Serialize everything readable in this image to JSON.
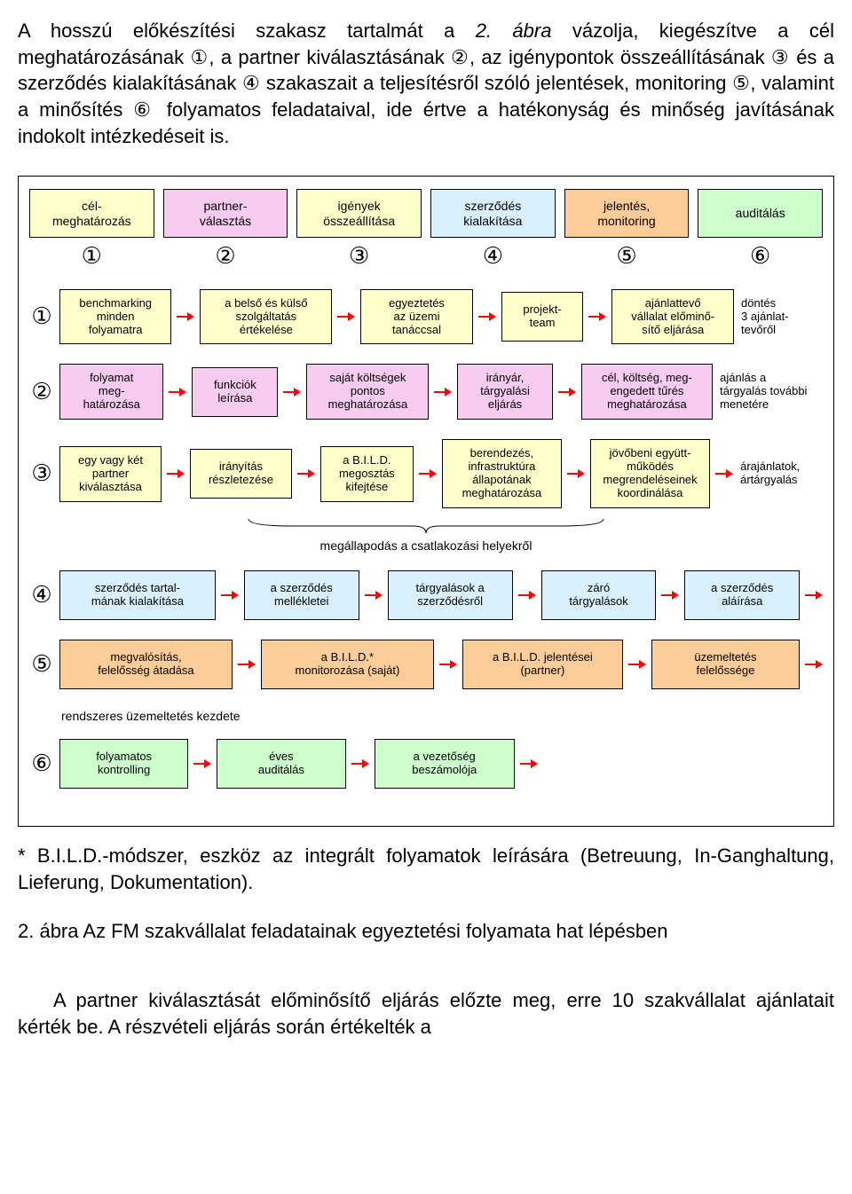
{
  "intro_para": "A hosszú előkészítési szakasz tartalmát a <span class=\"italic\">2. ábra</span> vázolja, kiegészítve a cél meghatározásának ①, a partner kiválasztásának ②, az igénypontok összeállításának ③ és a szerződés kialakításának ④ szakaszait a teljesítésről szóló jelentések, monitoring ⑤, valamint a minősítés ⑥ folyamatos feladataival, ide értve a hatékonyság és minőség javításának indokolt intézkedéseit is.",
  "colors": {
    "yellow": "#ffffcc",
    "pink": "#f8ccf0",
    "blue": "#cce8ff",
    "orange": "#fccc99",
    "lightblue": "#d9f0ff",
    "green": "#ccffcc",
    "none": "transparent",
    "arrow": "#ff0000"
  },
  "header": {
    "boxes": [
      {
        "label": "cél-\nmeghatározás",
        "color": "yellow"
      },
      {
        "label": "partner-\nválasztás",
        "color": "pink"
      },
      {
        "label": "igények\nösszeállítása",
        "color": "yellow"
      },
      {
        "label": "szerződés\nkialakítása",
        "color": "lightblue"
      },
      {
        "label": "jelentés,\nmonitoring",
        "color": "orange"
      },
      {
        "label": "auditálás",
        "color": "green"
      }
    ],
    "nums": [
      "①",
      "②",
      "③",
      "④",
      "⑤",
      "⑥"
    ]
  },
  "rows": [
    {
      "num": "①",
      "color": "yellow",
      "items": [
        {
          "t": "box",
          "label": "benchmarking\nminden\nfolyamatra",
          "flex": 1
        },
        {
          "t": "arr"
        },
        {
          "t": "box",
          "label": "a belső és külső\nszolgáltatás\nértékelése",
          "flex": 1.2
        },
        {
          "t": "arr"
        },
        {
          "t": "box",
          "label": "egyeztetés\naz üzemi\ntanáccsal",
          "flex": 1
        },
        {
          "t": "arr"
        },
        {
          "t": "box",
          "label": "projekt-\nteam",
          "flex": 0.7
        },
        {
          "t": "arr"
        },
        {
          "t": "box",
          "label": "ajánlattevő\nvállalat előminő-\nsítő eljárása",
          "flex": 1.1
        },
        {
          "t": "plain",
          "label": "döntés\n3 ajánlat-\ntevőről",
          "flex": 0.8
        }
      ]
    },
    {
      "num": "②",
      "color": "pink",
      "items": [
        {
          "t": "box",
          "label": "folyamat\nmeg-\nhatározása",
          "flex": 1
        },
        {
          "t": "arr"
        },
        {
          "t": "box",
          "label": "funkciók\nleírása",
          "flex": 0.8
        },
        {
          "t": "arr"
        },
        {
          "t": "box",
          "label": "saját költségek\npontos\nmeghatározása",
          "flex": 1.2
        },
        {
          "t": "arr"
        },
        {
          "t": "box",
          "label": "irányár,\ntárgyalási\neljárás",
          "flex": 0.9
        },
        {
          "t": "arr"
        },
        {
          "t": "box",
          "label": "cél, költség, meg-\nengedett tűrés\nmeghatározása",
          "flex": 1.3
        },
        {
          "t": "plain",
          "label": "ajánlás a\ntárgyalás további\nmenetére",
          "flex": 1.1
        }
      ]
    },
    {
      "num": "③",
      "color": "yellow",
      "brace": true,
      "items": [
        {
          "t": "box",
          "label": "egy vagy két\npartner\nkiválasztása",
          "flex": 1
        },
        {
          "t": "arr"
        },
        {
          "t": "box",
          "label": "irányítás\nrészletezése",
          "flex": 1
        },
        {
          "t": "arr"
        },
        {
          "t": "box",
          "label": "a B.I.L.D.\nmegosztás\nkifejtése",
          "flex": 0.9
        },
        {
          "t": "arr"
        },
        {
          "t": "box",
          "label": "berendezés,\ninfrastruktúra\nállapotának\nmeghatározása",
          "flex": 1.2
        },
        {
          "t": "arr"
        },
        {
          "t": "box",
          "label": "jövőbeni együtt-\nműködés\nmegrendeléseinek\nkoordinálása",
          "flex": 1.2
        },
        {
          "t": "arr"
        },
        {
          "t": "plain",
          "label": "árajánlatok,\nártárgyalás",
          "flex": 0.9
        }
      ]
    },
    {
      "num": "④",
      "color": "lightblue",
      "items": [
        {
          "t": "box",
          "label": "szerződés tartal-\nmának kialakítása",
          "flex": 1.4
        },
        {
          "t": "arr"
        },
        {
          "t": "box",
          "label": "a szerződés\nmellékletei",
          "flex": 1
        },
        {
          "t": "arr"
        },
        {
          "t": "box",
          "label": "tárgyalások a\nszerződésről",
          "flex": 1.1
        },
        {
          "t": "arr"
        },
        {
          "t": "box",
          "label": "záró\ntárgyalások",
          "flex": 1
        },
        {
          "t": "arr"
        },
        {
          "t": "box",
          "label": "a szerződés\naláírása",
          "flex": 1
        },
        {
          "t": "arr"
        }
      ]
    },
    {
      "num": "⑤",
      "color": "orange",
      "note_after": "rendszeres üzemeltetés kezdete",
      "items": [
        {
          "t": "box",
          "label": "megvalósítás,\nfelelősség átadása",
          "flex": 1.3
        },
        {
          "t": "arr"
        },
        {
          "t": "box",
          "label": "a B.I.L.D.*\nmonitorozása (saját)",
          "flex": 1.3
        },
        {
          "t": "arr"
        },
        {
          "t": "box",
          "label": "a B.I.L.D. jelentései\n(partner)",
          "flex": 1.2
        },
        {
          "t": "arr"
        },
        {
          "t": "box",
          "label": "üzemeltetés\nfelelőssége",
          "flex": 1.1
        },
        {
          "t": "arr"
        }
      ]
    },
    {
      "num": "⑥",
      "color": "green",
      "items": [
        {
          "t": "box",
          "label": "folyamatos\nkontrolling",
          "flex": 1
        },
        {
          "t": "arr"
        },
        {
          "t": "box",
          "label": "éves\nauditálás",
          "flex": 1
        },
        {
          "t": "arr"
        },
        {
          "t": "box",
          "label": "a vezetőség\nbeszámolója",
          "flex": 1.1
        },
        {
          "t": "arr"
        },
        {
          "t": "spacer",
          "flex": 2.4
        }
      ]
    }
  ],
  "brace_label": "megállapodás a csatlakozási helyekről",
  "footnote": "* B.I.L.D.-módszer, eszköz az integrált folyamatok leírására (Betreuung, In-Ganghaltung, Lieferung, Dokumentation).",
  "caption": "2. ábra Az FM szakvállalat feladatainak egyeztetési folyamata hat lépésben",
  "bottom_para": "A partner kiválasztását előminősítő eljárás előzte meg, erre 10 szakvállalat ajánlatait kérték be. A részvételi eljárás során értékelték a"
}
